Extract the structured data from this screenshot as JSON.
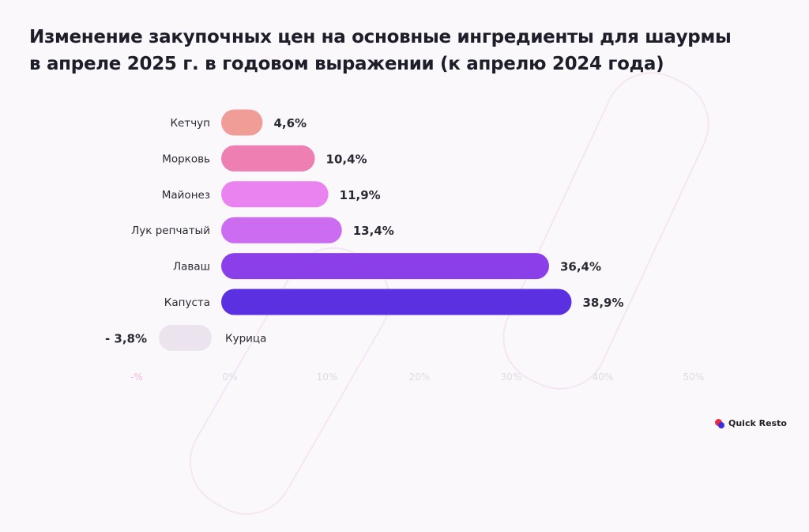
{
  "title_lines": [
    "Изменение закупочных цен на основные ингредиенты для шаурмы",
    "в апреле 2025 г. в годовом выражении (к апрелю 2024 года)"
  ],
  "brand": "Quick Resto",
  "chart_data": {
    "type": "bar",
    "orientation": "horizontal",
    "title": "Изменение закупочных цен на основные ингредиенты для шаурмы в апреле 2025 г. в годовом выражении (к апрелю 2024 года)",
    "categories": [
      "Кетчуп",
      "Морковь",
      "Майонез",
      "Лук репчатый",
      "Лаваш",
      "Капуста",
      "Курица"
    ],
    "values": [
      4.6,
      10.4,
      11.9,
      13.4,
      36.4,
      38.9,
      -3.8
    ],
    "data_labels": [
      "4,6%",
      "10,4%",
      "11,9%",
      "13,4%",
      "36,4%",
      "38,9%",
      "- 3,8%"
    ],
    "colors": [
      "#f09d98",
      "#ee7fb2",
      "#ea82f0",
      "#cc6cf0",
      "#8b3fe8",
      "#5a30e0",
      "#ebe3ee"
    ],
    "x_ticks": [
      "-%",
      "0%",
      "10%",
      "20%",
      "30%",
      "40%",
      "50%"
    ],
    "xlim": [
      -10,
      50
    ],
    "grid": false,
    "legend": "none"
  }
}
